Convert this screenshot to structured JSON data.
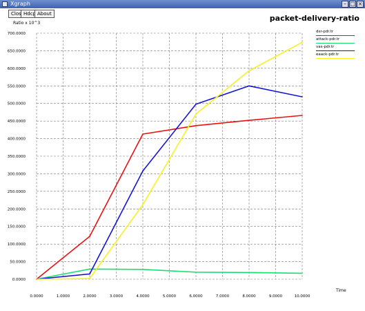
{
  "window": {
    "title": "Xgraph"
  },
  "toolbar": {
    "close_label": "Close",
    "hdcpy_label": "Hdcpy",
    "about_label": "About"
  },
  "chart_data": {
    "type": "line",
    "title": "packet-delivery-ratio",
    "ylabel": "Ratio x 10^3",
    "xlabel": "Time",
    "xlim": [
      0,
      10
    ],
    "ylim": [
      0,
      700
    ],
    "grid": true,
    "legend": "top-right",
    "x_ticks": [
      "0.0000",
      "1.0000",
      "2.0000",
      "3.0000",
      "4.0000",
      "5.0000",
      "6.0000",
      "7.0000",
      "8.0000",
      "9.0000",
      "10.0000"
    ],
    "y_ticks": [
      "0.0000",
      "50.0000",
      "100.0000",
      "150.0000",
      "200.0000",
      "250.0000",
      "300.0000",
      "350.0000",
      "400.0000",
      "450.0000",
      "500.0000",
      "550.0000",
      "600.0000",
      "650.0000",
      "700.0000"
    ],
    "series": [
      {
        "name": "dsr-pdr.tr",
        "color": "#e81010",
        "x": [
          0,
          2,
          4,
          6,
          8,
          10
        ],
        "values": [
          0,
          122,
          413,
          437,
          452,
          466
        ]
      },
      {
        "name": "attack-pdr.tr",
        "color": "#18e070",
        "x": [
          0,
          2,
          4,
          6,
          8,
          10
        ],
        "values": [
          0,
          29,
          28,
          20,
          19,
          17
        ]
      },
      {
        "name": "vas-pdr.tr",
        "color": "#1414d8",
        "x": [
          0,
          2,
          4,
          6,
          8,
          10
        ],
        "values": [
          0,
          15,
          308,
          498,
          550,
          519
        ]
      },
      {
        "name": "eaack-pdr.tr",
        "color": "#f8f020",
        "x": [
          0,
          2,
          4,
          6,
          8,
          10
        ],
        "values": [
          0,
          2,
          212,
          470,
          593,
          674
        ]
      }
    ]
  }
}
